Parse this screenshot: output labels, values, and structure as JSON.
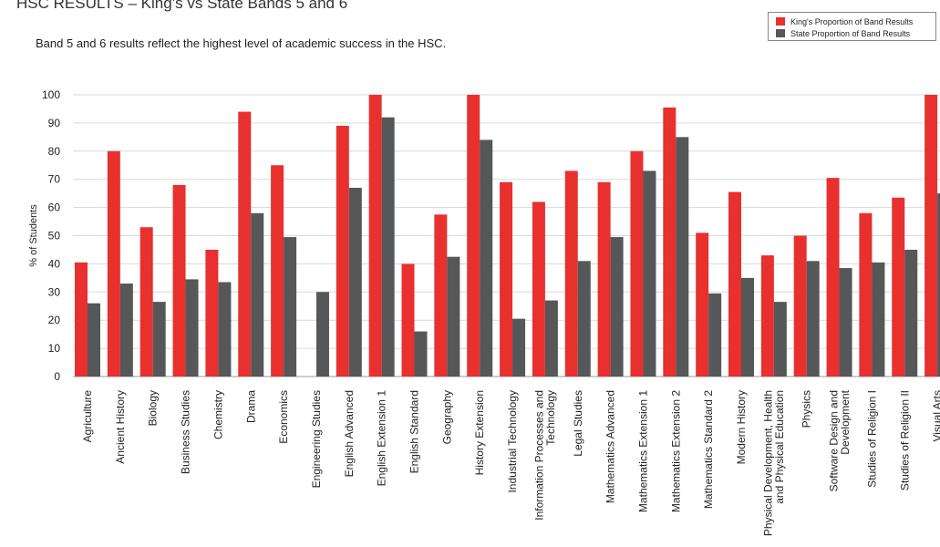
{
  "chart_data": {
    "type": "bar",
    "title": "HSC RESULTS – King’s vs State Bands 5 and 6",
    "subtitle": "Band 5 and 6 results reflect the highest level of academic success in the HSC.",
    "xlabel": "",
    "ylabel": "% of Students",
    "ylim": [
      0,
      100
    ],
    "yticks": [
      0,
      10,
      20,
      30,
      40,
      50,
      60,
      70,
      80,
      90,
      100
    ],
    "grid": true,
    "legend_position": "top-right",
    "categories": [
      [
        "Agriculture"
      ],
      [
        "Ancient History"
      ],
      [
        "Biology"
      ],
      [
        "Business Studies"
      ],
      [
        "Chemistry"
      ],
      [
        "Drama"
      ],
      [
        "Economics"
      ],
      [
        "Engineering Studies"
      ],
      [
        "English Advanced"
      ],
      [
        "English Extension 1"
      ],
      [
        "English Standard"
      ],
      [
        "Geography"
      ],
      [
        "History Extension"
      ],
      [
        "Industrial Technology"
      ],
      [
        "Information Processes and",
        "Technology"
      ],
      [
        "Legal Studies"
      ],
      [
        "Mathematics Advanced"
      ],
      [
        "Mathematics Extension 1"
      ],
      [
        "Mathematics Extension 2"
      ],
      [
        "Mathematics Standard 2"
      ],
      [
        "Modern History"
      ],
      [
        "Physical Development, Health",
        "and Physical Education"
      ],
      [
        "Physics"
      ],
      [
        "Software Design and",
        "Development"
      ],
      [
        "Studies of Religion I"
      ],
      [
        "Studies of Religion II"
      ],
      [
        "Visual Arts"
      ]
    ],
    "series": [
      {
        "name": "King's Proportion of Band Results",
        "color": "#e8302e",
        "values": [
          40.5,
          80,
          53,
          68,
          45,
          94,
          75,
          0,
          89,
          100,
          40,
          57.5,
          100,
          69,
          62,
          73,
          69,
          80,
          95.5,
          51,
          65.5,
          43,
          50,
          70.5,
          58,
          63.5,
          100
        ]
      },
      {
        "name": "State Proportion of Band Results",
        "color": "#555759",
        "values": [
          26,
          33,
          26.5,
          34.5,
          33.5,
          58,
          49.5,
          30,
          67,
          92,
          16,
          42.5,
          84,
          20.5,
          27,
          41,
          49.5,
          73,
          85,
          29.5,
          35,
          26.5,
          41,
          38.5,
          40.5,
          45,
          65
        ]
      }
    ]
  }
}
